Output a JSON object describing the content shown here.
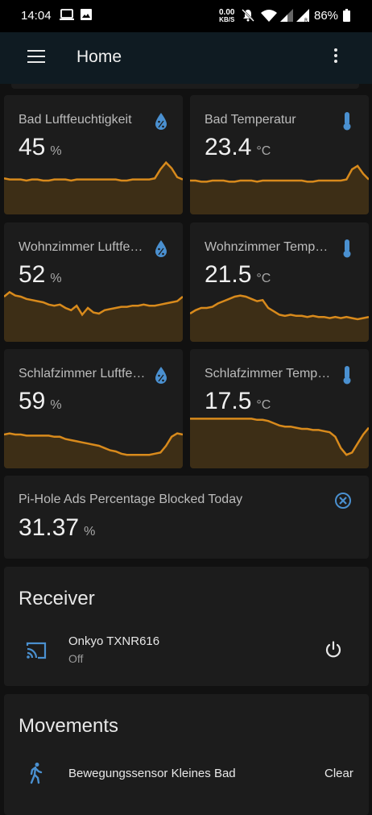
{
  "status_bar": {
    "time": "14:04",
    "net_speed": "0.00",
    "net_unit": "KB/S",
    "battery": "86%"
  },
  "app_bar": {
    "title": "Home"
  },
  "sensors": [
    {
      "name": "Bad Luftfeuchtigkeit",
      "value": "45",
      "unit": "%",
      "icon": "water-percent-icon",
      "history": [
        32,
        31,
        31,
        31,
        30,
        31,
        31,
        30,
        30,
        31,
        31,
        31,
        30,
        31,
        31,
        31,
        31,
        31,
        31,
        31,
        31,
        30,
        30,
        31,
        31,
        31,
        31,
        32,
        40,
        46,
        41,
        33,
        31
      ]
    },
    {
      "name": "Bad Temperatur",
      "value": "23.4",
      "unit": "°C",
      "icon": "thermometer-icon",
      "history": [
        30,
        30,
        29,
        29,
        30,
        30,
        30,
        29,
        29,
        30,
        30,
        30,
        29,
        30,
        30,
        30,
        30,
        30,
        30,
        30,
        30,
        29,
        29,
        30,
        30,
        30,
        30,
        30,
        31,
        40,
        43,
        36,
        31
      ]
    },
    {
      "name": "Wohnzimmer Luftfeuchtigkeit",
      "value": "52",
      "unit": "%",
      "icon": "water-percent-icon",
      "history": [
        40,
        44,
        41,
        40,
        38,
        37,
        36,
        35,
        33,
        32,
        33,
        30,
        28,
        32,
        24,
        30,
        26,
        25,
        28,
        29,
        30,
        31,
        31,
        32,
        32,
        33,
        32,
        32,
        33,
        34,
        35,
        36,
        40
      ]
    },
    {
      "name": "Wohnzimmer Temperatur",
      "value": "21.5",
      "unit": "°C",
      "icon": "thermometer-icon",
      "history": [
        25,
        28,
        30,
        30,
        31,
        34,
        36,
        38,
        40,
        41,
        40,
        38,
        36,
        37,
        30,
        27,
        24,
        23,
        24,
        23,
        23,
        22,
        23,
        22,
        22,
        21,
        22,
        21,
        22,
        21,
        20,
        21,
        22
      ]
    },
    {
      "name": "Schlafzimmer Luftfeuchtigkeit",
      "value": "59",
      "unit": "%",
      "icon": "water-percent-icon",
      "history": [
        30,
        31,
        30,
        30,
        29,
        29,
        29,
        29,
        29,
        28,
        28,
        26,
        25,
        24,
        23,
        22,
        21,
        20,
        18,
        16,
        15,
        13,
        12,
        12,
        12,
        12,
        12,
        13,
        14,
        20,
        28,
        31,
        30
      ]
    },
    {
      "name": "Schlafzimmer Temperatur",
      "value": "17.5",
      "unit": "°C",
      "icon": "thermometer-icon",
      "history": [
        44,
        44,
        44,
        44,
        44,
        44,
        44,
        44,
        44,
        44,
        44,
        44,
        43,
        43,
        42,
        40,
        38,
        37,
        37,
        36,
        35,
        35,
        34,
        34,
        33,
        32,
        28,
        18,
        12,
        14,
        22,
        30,
        36
      ]
    }
  ],
  "pihole": {
    "name": "Pi-Hole Ads Percentage Blocked Today",
    "value": "31.37",
    "unit": "%",
    "icon": "close-circle-icon"
  },
  "receiver": {
    "title": "Receiver",
    "entity_name": "Onkyo TXNR616",
    "state": "Off",
    "icon": "cast-icon",
    "action_icon": "power-icon"
  },
  "movements": {
    "title": "Movements",
    "entity_name": "Bewegungssensor Kleines Bad",
    "state": "Clear",
    "icon": "walk-icon"
  },
  "colors": {
    "accent_line": "#d88a1c",
    "accent_fill": "#3d2e16",
    "icon_blue": "#4a90d0"
  }
}
